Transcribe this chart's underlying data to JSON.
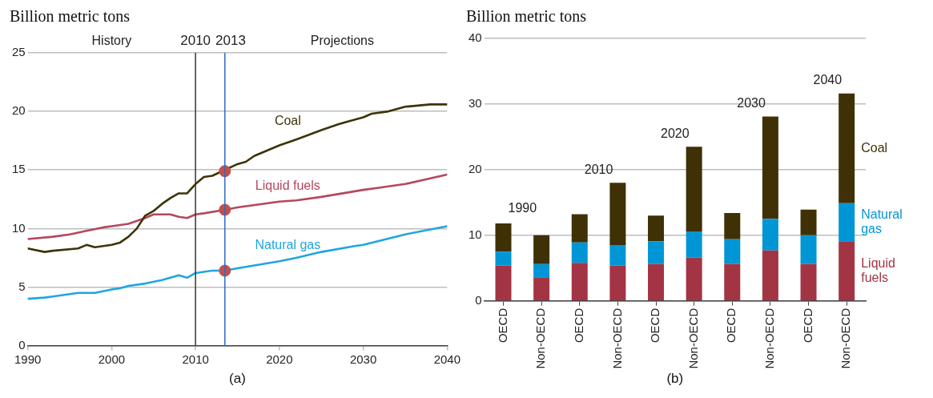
{
  "chart_data": [
    {
      "type": "line",
      "ylabel": "Billion metric tons",
      "xlabel": "(a)",
      "xlim": [
        1990,
        2040
      ],
      "xticks": [
        1990,
        2000,
        2010,
        2020,
        2030,
        2040
      ],
      "ylim": [
        0,
        25
      ],
      "yticks": [
        0,
        5,
        10,
        15,
        20,
        25
      ],
      "grid": "y",
      "marker": "none",
      "line_style": "solid",
      "series": [
        {
          "name": "Coal",
          "color": "#3d3308",
          "x": [
            1990,
            1992,
            1993,
            1996,
            1997,
            1998,
            2000,
            2001,
            2002,
            2003,
            2004,
            2005,
            2006,
            2007,
            2008,
            2009,
            2010,
            2011,
            2012,
            2015,
            2016,
            2017,
            2020,
            2022,
            2025,
            2027,
            2028,
            2030,
            2031,
            2033,
            2035,
            2038,
            2040
          ],
          "values": [
            8.3,
            8.0,
            8.1,
            8.3,
            8.6,
            8.4,
            8.6,
            8.8,
            9.3,
            10.0,
            11.1,
            11.5,
            12.1,
            12.6,
            13.0,
            13.0,
            13.8,
            14.4,
            14.5,
            15.5,
            15.7,
            16.2,
            17.1,
            17.6,
            18.4,
            18.9,
            19.1,
            19.5,
            19.8,
            20.0,
            20.4,
            20.6,
            20.6
          ]
        },
        {
          "name": "Liquid fuels",
          "color": "#b5475d",
          "x": [
            1990,
            1993,
            1995,
            1997,
            1999,
            2000,
            2002,
            2004,
            2005,
            2007,
            2008,
            2009,
            2010,
            2011,
            2013.5,
            2015,
            2020,
            2022,
            2025,
            2030,
            2032,
            2035,
            2040
          ],
          "values": [
            9.1,
            9.3,
            9.5,
            9.8,
            10.1,
            10.2,
            10.4,
            10.9,
            11.2,
            11.2,
            11.0,
            10.9,
            11.2,
            11.3,
            11.6,
            11.8,
            12.3,
            12.4,
            12.7,
            13.3,
            13.5,
            13.8,
            14.6
          ]
        },
        {
          "name": "Natural gas",
          "color": "#1ea6e0",
          "x": [
            1990,
            1992,
            1993,
            1995,
            1996,
            1998,
            2000,
            2001,
            2002,
            2004,
            2006,
            2007,
            2008,
            2009,
            2010,
            2012,
            2013.5,
            2015,
            2020,
            2022,
            2025,
            2029,
            2030,
            2035,
            2040
          ],
          "values": [
            4.0,
            4.1,
            4.2,
            4.4,
            4.5,
            4.5,
            4.8,
            4.9,
            5.1,
            5.3,
            5.6,
            5.8,
            6.0,
            5.8,
            6.2,
            6.4,
            6.4,
            6.6,
            7.2,
            7.5,
            8.0,
            8.5,
            8.6,
            9.5,
            10.2
          ]
        },
        {
          "type": "scatter",
          "marker": "circle",
          "color": "#c0504d",
          "x": [
            2013.5,
            2013.5,
            2013.5
          ],
          "values": [
            14.9,
            11.6,
            6.4
          ]
        }
      ],
      "ref_lines": [
        {
          "axis": "x",
          "value": 2010,
          "label": "2010",
          "color": "#333333"
        },
        {
          "axis": "x",
          "value": 2013.5,
          "label": "2013",
          "color": "#2e6bc4"
        }
      ],
      "annotations": [
        "History",
        "Projections"
      ]
    },
    {
      "type": "bar",
      "stacked": true,
      "ylabel": "Billion metric tons",
      "xlabel": "(b)",
      "categories": [
        "OECD",
        "Non-OECD",
        "OECD",
        "Non-OECD",
        "OECD",
        "Non-OECD",
        "OECD",
        "Non-OECD",
        "OECD",
        "Non-OECD"
      ],
      "ylim": [
        0,
        40
      ],
      "yticks": [
        0,
        10,
        20,
        30,
        40
      ],
      "grid": "y",
      "series": [
        {
          "name": "Liquid fuels",
          "color": "#a33444",
          "values": [
            5.4,
            3.6,
            5.8,
            5.4,
            5.6,
            6.6,
            5.6,
            7.7,
            5.6,
            9.1
          ]
        },
        {
          "name": "Natural gas",
          "color": "#0096d6",
          "values": [
            2.1,
            2.0,
            3.1,
            3.1,
            3.5,
            4.0,
            3.8,
            4.8,
            4.4,
            5.8
          ]
        },
        {
          "name": "Coal",
          "color": "#3f3105",
          "values": [
            4.3,
            4.4,
            4.3,
            9.5,
            3.9,
            12.9,
            4.0,
            15.6,
            3.9,
            16.7
          ]
        }
      ],
      "annotations": [
        "1990",
        "2010",
        "2020",
        "2030",
        "2040"
      ]
    }
  ]
}
